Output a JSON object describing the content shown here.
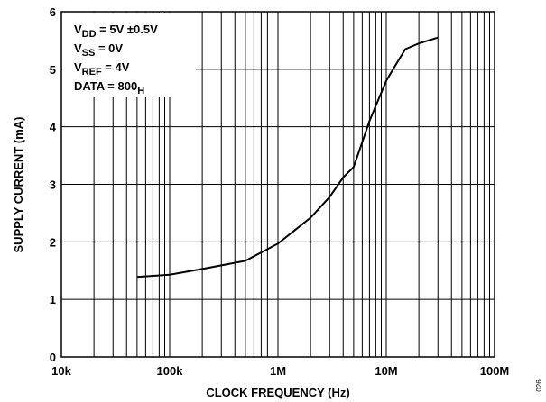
{
  "chart_data": {
    "type": "line",
    "xlabel": "CLOCK FREQUENCY (Hz)",
    "ylabel": "SUPPLY CURRENT (mA)",
    "x": [
      50000,
      100000,
      200000,
      500000,
      1000000,
      2000000,
      3000000,
      4000000,
      5000000,
      7000000,
      10000000,
      12000000,
      15000000,
      20000000,
      30000000
    ],
    "values": [
      1.39,
      1.43,
      1.53,
      1.67,
      1.97,
      2.42,
      2.78,
      3.12,
      3.3,
      4.1,
      4.8,
      5.05,
      5.35,
      5.45,
      5.55
    ],
    "color": "#000000",
    "xscale": "log",
    "xlim": [
      10000,
      100000000
    ],
    "xticks": [
      {
        "value": 10000,
        "label": "10k"
      },
      {
        "value": 100000,
        "label": "100k"
      },
      {
        "value": 1000000,
        "label": "1M"
      },
      {
        "value": 10000000,
        "label": "10M"
      },
      {
        "value": 100000000,
        "label": "100M"
      }
    ],
    "xminorticks": [
      20000,
      30000,
      40000,
      50000,
      60000,
      70000,
      80000,
      90000,
      200000,
      300000,
      400000,
      500000,
      600000,
      700000,
      800000,
      900000,
      2000000,
      3000000,
      4000000,
      5000000,
      6000000,
      7000000,
      8000000,
      9000000,
      20000000,
      30000000,
      40000000,
      50000000,
      60000000,
      70000000,
      80000000,
      90000000
    ],
    "ylim": [
      0,
      6
    ],
    "yticks": [
      0,
      1,
      2,
      3,
      4,
      5,
      6
    ],
    "grid": true,
    "annotations": [
      {
        "text": "V",
        "sub": "DD",
        "after": " = 5V ±0.5V"
      },
      {
        "text": "V",
        "sub": "SS",
        "after": " = 0V"
      },
      {
        "text": "V",
        "sub": "REF",
        "after": " = 4V"
      },
      {
        "text": "DATA = 800",
        "sub": "H"
      }
    ],
    "figure_id": "026"
  }
}
